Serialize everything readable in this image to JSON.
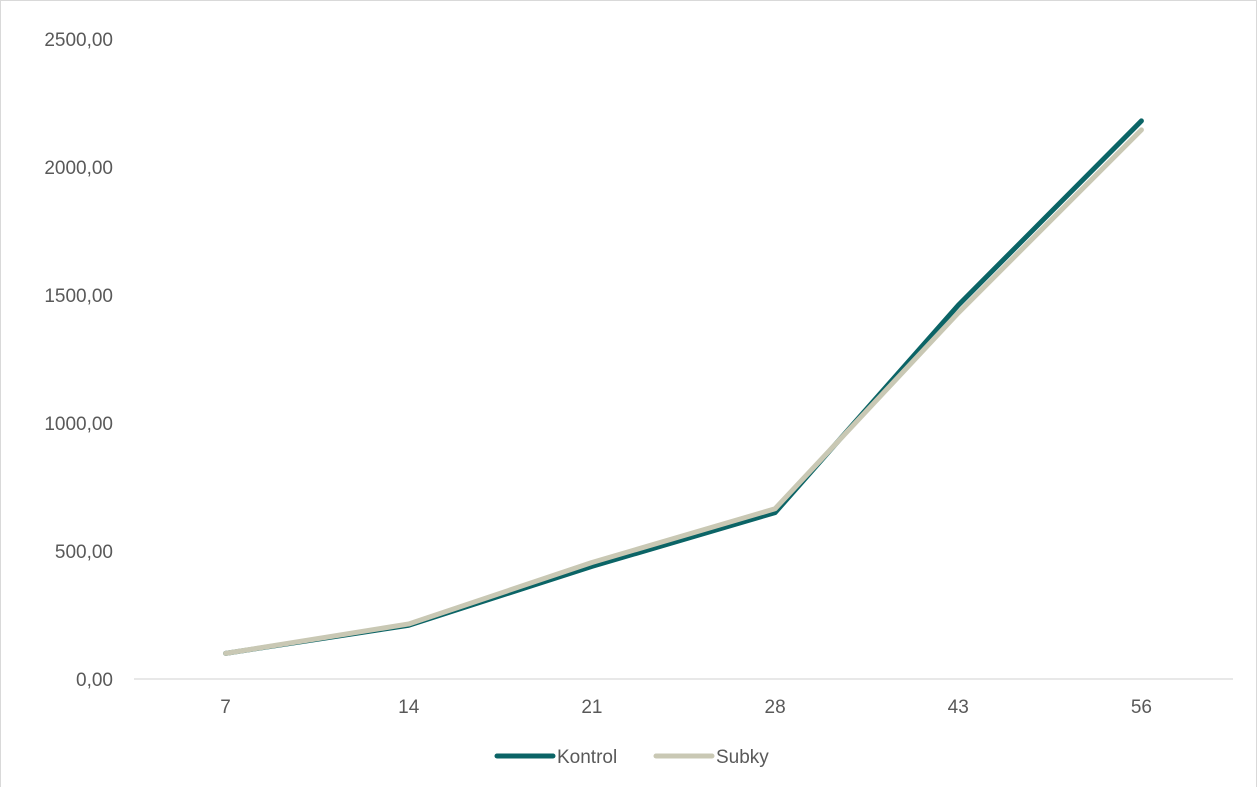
{
  "chart_data": {
    "type": "line",
    "title": "",
    "xlabel": "",
    "ylabel": "",
    "categories": [
      "7",
      "14",
      "21",
      "28",
      "43",
      "56"
    ],
    "ylim": [
      0,
      2500
    ],
    "yticks": [
      0,
      500,
      1000,
      1500,
      2000,
      2500
    ],
    "ytick_labels": [
      "0,00",
      "500,00",
      "1000,00",
      "1500,00",
      "2000,00",
      "2500,00"
    ],
    "grid": false,
    "legend_position": "bottom",
    "series": [
      {
        "name": "Kontrol",
        "color": "#0b6466",
        "values": [
          100,
          210,
          440,
          650,
          1460,
          2180
        ]
      },
      {
        "name": "Subky",
        "color": "#c9c8b4",
        "values": [
          100,
          215,
          455,
          665,
          1430,
          2145
        ]
      }
    ]
  }
}
